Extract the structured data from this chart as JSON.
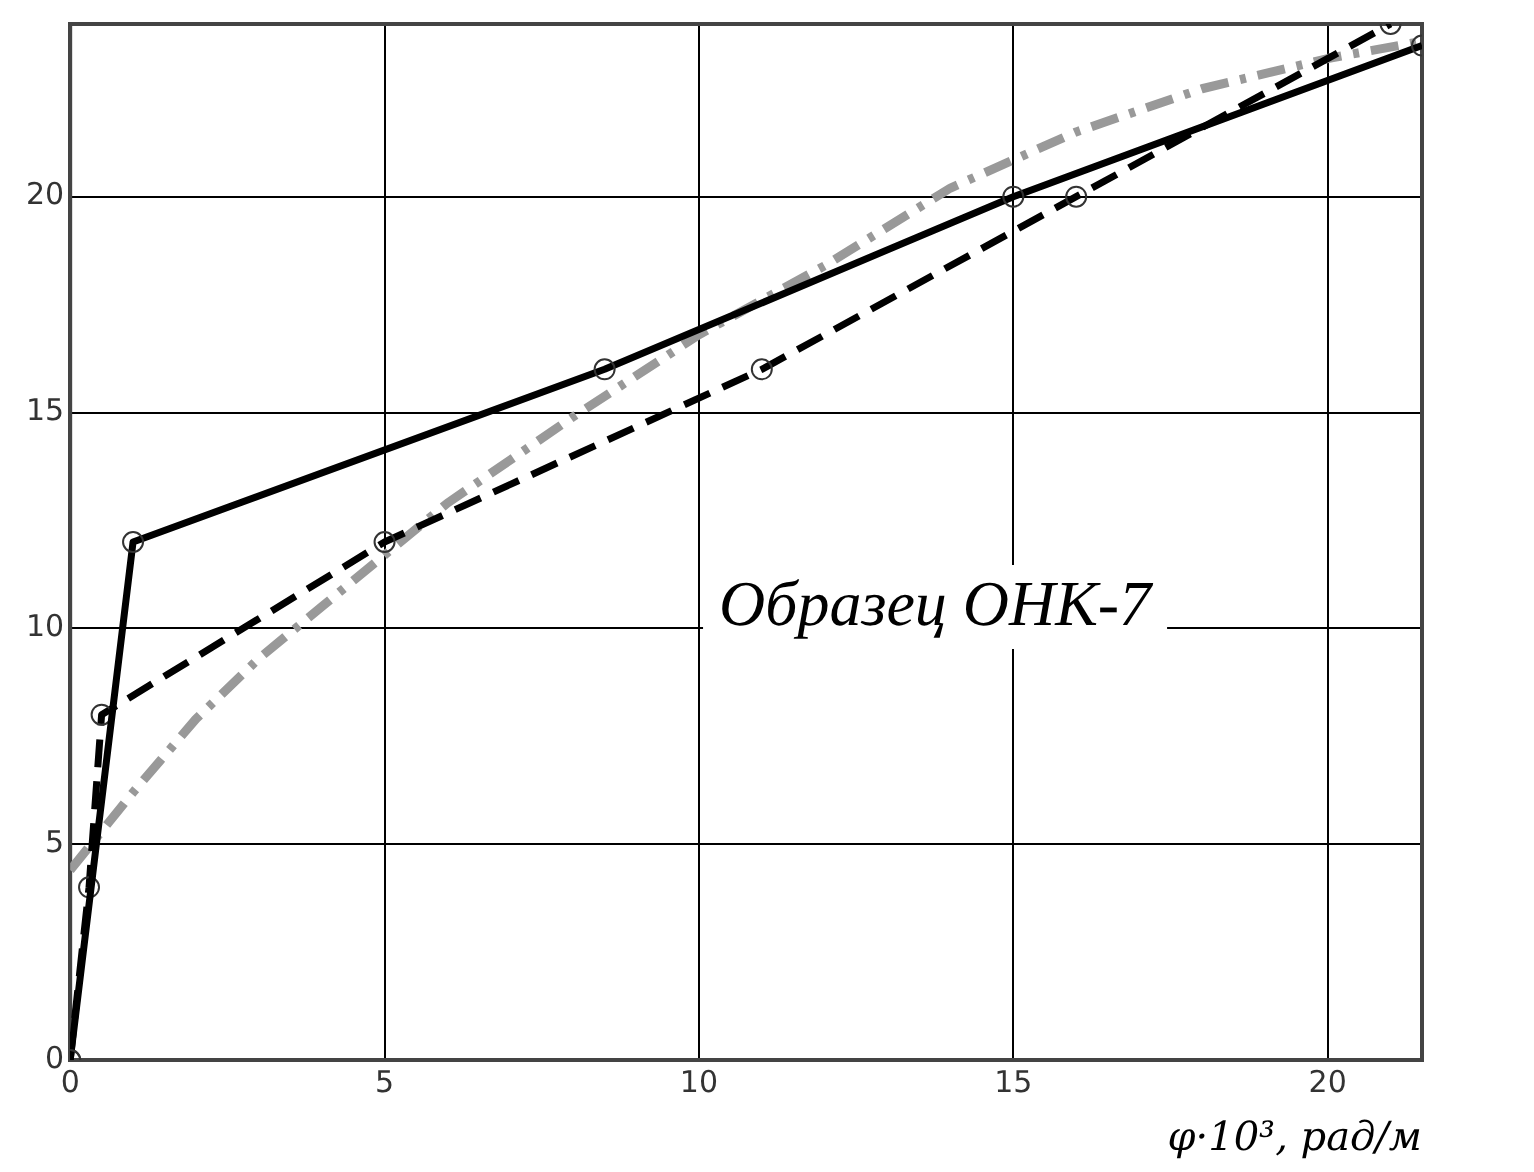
{
  "chart_data": {
    "type": "line",
    "xlabel": "φ·10³, рад/м",
    "annotations": [
      "Образец ОНК-7"
    ],
    "xlim": [
      0,
      21.5
    ],
    "xticks": [
      0,
      5,
      10,
      15,
      20
    ],
    "ylim": [
      0,
      24
    ],
    "yticks": [
      0,
      5,
      10,
      15,
      20
    ],
    "grid": true,
    "legend": false,
    "series": [
      {
        "color": "#000000",
        "line_style": "solid",
        "marker": "circle",
        "x": [
          0,
          1,
          8.5,
          15,
          21.5
        ],
        "values": [
          0,
          12,
          16,
          20,
          23.5
        ]
      },
      {
        "color": "#000000",
        "line_style": "dashed",
        "marker": "circle",
        "x": [
          0,
          0.3,
          0.5,
          5,
          11,
          16,
          21
        ],
        "values": [
          0,
          4,
          8,
          12,
          16,
          20,
          24
        ]
      },
      {
        "color": "#999999",
        "line_style": "dashdot",
        "marker": "none",
        "x": [
          0,
          1,
          2,
          3,
          4,
          5,
          6,
          8,
          10,
          12,
          14,
          16,
          18,
          20,
          21.5
        ],
        "values": [
          4.4,
          6.2,
          7.9,
          9.3,
          10.5,
          11.7,
          12.9,
          14.9,
          16.8,
          18.4,
          20.2,
          21.5,
          22.5,
          23.2,
          23.6
        ]
      }
    ]
  }
}
